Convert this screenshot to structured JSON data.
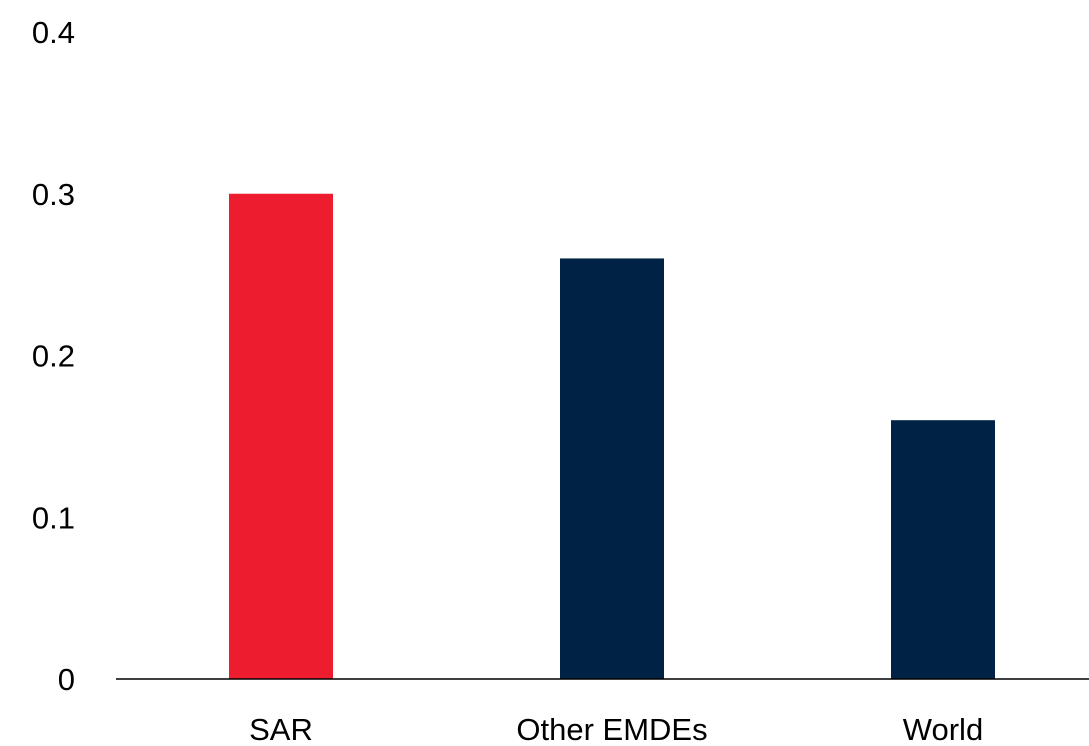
{
  "chart_data": {
    "type": "bar",
    "categories": [
      "SAR",
      "Other EMDEs",
      "World"
    ],
    "values": [
      0.3,
      0.26,
      0.16
    ],
    "bar_colors": [
      "#ED1C2E",
      "#002345",
      "#002345"
    ],
    "y_ticks": [
      "0",
      "0.1",
      "0.2",
      "0.3",
      "0.4"
    ],
    "ylim": [
      0,
      0.4
    ],
    "grid": false,
    "title": "",
    "xlabel": "",
    "ylabel": ""
  }
}
